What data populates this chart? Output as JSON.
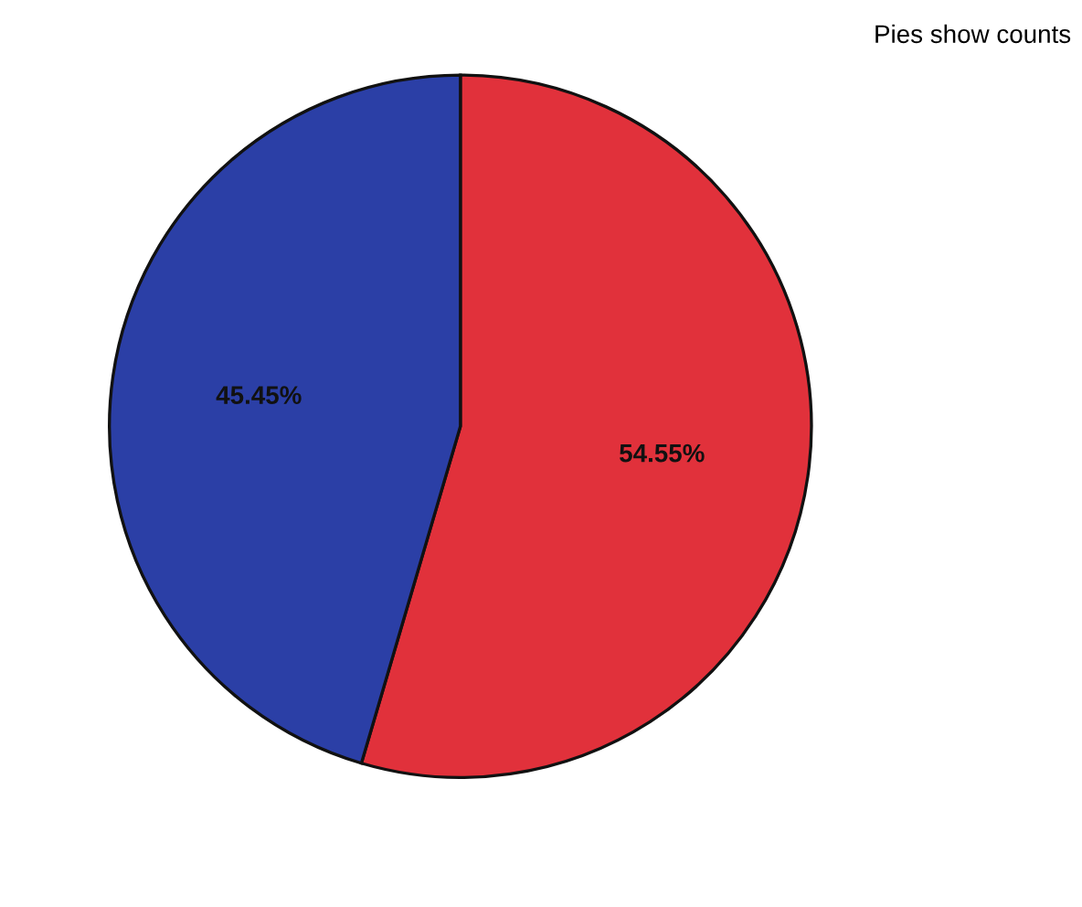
{
  "chart_data": {
    "type": "pie",
    "annotations": [
      "Pies show counts"
    ],
    "categories": [
      null,
      null
    ],
    "values": [
      54.55,
      45.45
    ],
    "colors": [
      "#e1313b",
      "#2b3fa6"
    ],
    "value_labels": [
      "54.55%",
      "45.45%"
    ]
  }
}
